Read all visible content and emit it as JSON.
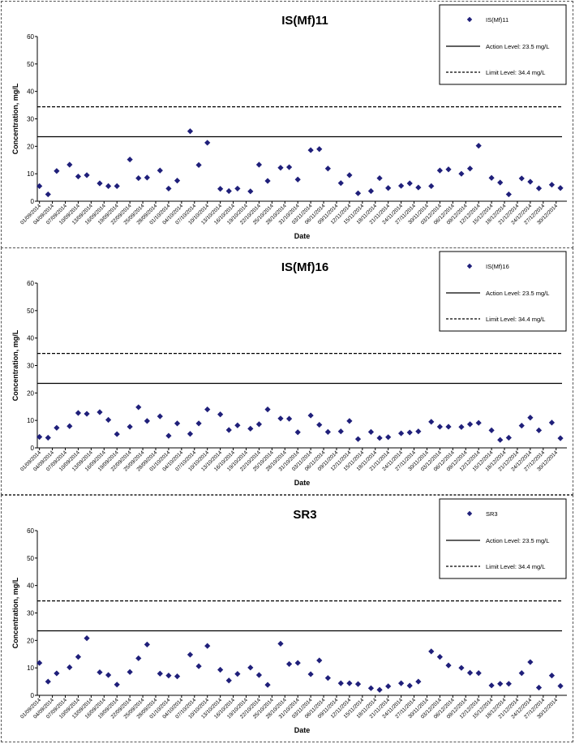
{
  "chart_data": [
    {
      "type": "scatter",
      "title": "IS(Mf)11",
      "xlabel": "Date",
      "ylabel": "Concentration, mg/L",
      "ylim": [
        0,
        60
      ],
      "yticks": [
        0,
        10,
        20,
        30,
        40,
        50,
        60
      ],
      "grid": false,
      "legend": "top-right",
      "xtick_labels": [
        "01/09/2014",
        "04/09/2014",
        "07/09/2014",
        "10/09/2014",
        "13/09/2014",
        "16/09/2014",
        "19/09/2014",
        "22/09/2014",
        "25/09/2014",
        "28/09/2014",
        "01/10/2014",
        "04/10/2014",
        "07/10/2014",
        "10/10/2014",
        "13/10/2014",
        "16/10/2014",
        "19/10/2014",
        "22/10/2014",
        "25/10/2014",
        "28/10/2014",
        "31/10/2014",
        "03/11/2014",
        "06/11/2014",
        "09/11/2014",
        "12/11/2014",
        "15/11/2014",
        "18/11/2014",
        "21/11/2014",
        "24/11/2014",
        "27/11/2014",
        "30/11/2014",
        "03/12/2014",
        "06/12/2014",
        "09/12/2014",
        "12/12/2014",
        "15/12/2014",
        "18/12/2014",
        "21/12/2014",
        "24/12/2014",
        "27/12/2014",
        "30/12/2014"
      ],
      "series": [
        {
          "name": "IS(Mf)11",
          "color": "#1f1f7a",
          "x": [
            "01/09/2014",
            "03/09/2014",
            "05/09/2014",
            "08/09/2014",
            "10/09/2014",
            "12/09/2014",
            "15/09/2014",
            "17/09/2014",
            "19/09/2014",
            "22/09/2014",
            "24/09/2014",
            "26/09/2014",
            "29/09/2014",
            "01/10/2014",
            "03/10/2014",
            "06/10/2014",
            "08/10/2014",
            "10/10/2014",
            "13/10/2014",
            "15/10/2014",
            "17/10/2014",
            "20/10/2014",
            "22/10/2014",
            "24/10/2014",
            "27/10/2014",
            "29/10/2014",
            "31/10/2014",
            "03/11/2014",
            "05/11/2014",
            "07/11/2014",
            "10/11/2014",
            "12/11/2014",
            "14/11/2014",
            "17/11/2014",
            "19/11/2014",
            "21/11/2014",
            "24/11/2014",
            "26/11/2014",
            "28/11/2014",
            "01/12/2014",
            "03/12/2014",
            "05/12/2014",
            "08/12/2014",
            "10/12/2014",
            "12/12/2014",
            "15/12/2014",
            "17/12/2014",
            "19/12/2014",
            "22/12/2014",
            "24/12/2014",
            "26/12/2014",
            "29/12/2014",
            "31/12/2014"
          ],
          "values": [
            5.5,
            2.5,
            11,
            13.3,
            9,
            9.5,
            6.5,
            5.5,
            5.5,
            15.2,
            8.4,
            8.6,
            11.2,
            4.6,
            7.5,
            25.5,
            13.2,
            21.3,
            4.5,
            3.7,
            4.6,
            3.6,
            13.3,
            7.4,
            12.2,
            12.4,
            7.9,
            18.6,
            19,
            11.9,
            6.6,
            9.5,
            2.9,
            3.7,
            8.4,
            4.8,
            5.6,
            6.5,
            5,
            5.5,
            11.2,
            11.6,
            10,
            11.9,
            20.2,
            8.5,
            6.8,
            2.5,
            8.3,
            7.1,
            4.7,
            6,
            4.8
          ]
        },
        {
          "name": "Action Level: 23.5 mg/L",
          "style": "solid",
          "value": 23.5
        },
        {
          "name": "Limit Level: 34.4 mg/L",
          "style": "dashed",
          "value": 34.4
        }
      ]
    },
    {
      "type": "scatter",
      "title": "IS(Mf)16",
      "xlabel": "Date",
      "ylabel": "Concentration, mg/L",
      "ylim": [
        0,
        60
      ],
      "yticks": [
        0,
        10,
        20,
        30,
        40,
        50,
        60
      ],
      "grid": false,
      "legend": "top-right",
      "xtick_labels": [
        "01/09/2014",
        "04/09/2014",
        "07/09/2014",
        "10/09/2014",
        "13/09/2014",
        "16/09/2014",
        "19/09/2014",
        "22/09/2014",
        "25/09/2014",
        "28/09/2014",
        "01/10/2014",
        "04/10/2014",
        "07/10/2014",
        "10/10/2014",
        "13/10/2014",
        "16/10/2014",
        "19/10/2014",
        "22/10/2014",
        "25/10/2014",
        "28/10/2014",
        "31/10/2014",
        "03/11/2014",
        "06/11/2014",
        "09/11/2014",
        "12/11/2014",
        "15/11/2014",
        "18/11/2014",
        "21/11/2014",
        "24/11/2014",
        "27/11/2014",
        "30/11/2014",
        "03/12/2014",
        "06/12/2014",
        "09/12/2014",
        "12/12/2014",
        "15/12/2014",
        "18/12/2014",
        "21/12/2014",
        "24/12/2014",
        "27/12/2014",
        "30/12/2014"
      ],
      "series": [
        {
          "name": "IS(Mf)16",
          "color": "#1f1f7a",
          "x": [
            "01/09/2014",
            "03/09/2014",
            "05/09/2014",
            "08/09/2014",
            "10/09/2014",
            "12/09/2014",
            "15/09/2014",
            "17/09/2014",
            "19/09/2014",
            "22/09/2014",
            "24/09/2014",
            "26/09/2014",
            "29/09/2014",
            "01/10/2014",
            "03/10/2014",
            "06/10/2014",
            "08/10/2014",
            "10/10/2014",
            "13/10/2014",
            "15/10/2014",
            "17/10/2014",
            "20/10/2014",
            "22/10/2014",
            "24/10/2014",
            "27/10/2014",
            "29/10/2014",
            "31/10/2014",
            "03/11/2014",
            "05/11/2014",
            "07/11/2014",
            "10/11/2014",
            "12/11/2014",
            "14/11/2014",
            "17/11/2014",
            "19/11/2014",
            "21/11/2014",
            "24/11/2014",
            "26/11/2014",
            "28/11/2014",
            "01/12/2014",
            "03/12/2014",
            "05/12/2014",
            "08/12/2014",
            "10/12/2014",
            "12/12/2014",
            "15/12/2014",
            "17/12/2014",
            "19/12/2014",
            "22/12/2014",
            "24/12/2014",
            "26/12/2014",
            "29/12/2014",
            "31/12/2014"
          ],
          "values": [
            4,
            3.7,
            7.3,
            7.9,
            12.7,
            12.4,
            13,
            10.2,
            5,
            7.7,
            14.8,
            9.8,
            11.5,
            4.4,
            8.9,
            5.1,
            8.9,
            14,
            12.2,
            6.5,
            8.2,
            7,
            8.6,
            14,
            10.7,
            10.6,
            5.7,
            11.8,
            8.4,
            5.8,
            6,
            9.8,
            3.2,
            5.8,
            3.6,
            3.9,
            5.3,
            5.6,
            6,
            9.5,
            7.7,
            7.7,
            7.6,
            8.6,
            9.1,
            6.4,
            2.9,
            3.7,
            8.1,
            11,
            6.4,
            9.2,
            3.5
          ]
        },
        {
          "name": "Action Level: 23.5 mg/L",
          "style": "solid",
          "value": 23.5
        },
        {
          "name": "Limit Level: 34.4 mg/L",
          "style": "dashed",
          "value": 34.4
        }
      ]
    },
    {
      "type": "scatter",
      "title": "SR3",
      "xlabel": "Date",
      "ylabel": "Concentration, mg/L",
      "ylim": [
        0,
        60
      ],
      "yticks": [
        0,
        10,
        20,
        30,
        40,
        50,
        60
      ],
      "grid": false,
      "legend": "top-right",
      "xtick_labels": [
        "01/09/2014",
        "04/09/2014",
        "07/09/2014",
        "10/09/2014",
        "13/09/2014",
        "16/09/2014",
        "19/09/2014",
        "22/09/2014",
        "25/09/2014",
        "28/09/2014",
        "01/10/2014",
        "04/10/2014",
        "07/10/2014",
        "10/10/2014",
        "13/10/2014",
        "16/10/2014",
        "19/10/2014",
        "22/10/2014",
        "25/10/2014",
        "28/10/2014",
        "31/10/2014",
        "03/11/2014",
        "06/11/2014",
        "09/11/2014",
        "12/11/2014",
        "15/11/2014",
        "18/11/2014",
        "21/11/2014",
        "24/11/2014",
        "27/11/2014",
        "30/11/2014",
        "03/12/2014",
        "06/12/2014",
        "09/12/2014",
        "12/12/2014",
        "15/12/2014",
        "18/12/2014",
        "21/12/2014",
        "24/12/2014",
        "27/12/2014",
        "30/12/2014"
      ],
      "series": [
        {
          "name": "SR3",
          "color": "#1f1f7a",
          "x": [
            "01/09/2014",
            "03/09/2014",
            "05/09/2014",
            "08/09/2014",
            "10/09/2014",
            "12/09/2014",
            "15/09/2014",
            "17/09/2014",
            "19/09/2014",
            "22/09/2014",
            "24/09/2014",
            "26/09/2014",
            "29/09/2014",
            "01/10/2014",
            "03/10/2014",
            "06/10/2014",
            "08/10/2014",
            "10/10/2014",
            "13/10/2014",
            "15/10/2014",
            "17/10/2014",
            "20/10/2014",
            "22/10/2014",
            "24/10/2014",
            "27/10/2014",
            "29/10/2014",
            "31/10/2014",
            "03/11/2014",
            "05/11/2014",
            "07/11/2014",
            "10/11/2014",
            "12/11/2014",
            "14/11/2014",
            "17/11/2014",
            "19/11/2014",
            "21/11/2014",
            "24/11/2014",
            "26/11/2014",
            "28/11/2014",
            "01/12/2014",
            "03/12/2014",
            "05/12/2014",
            "08/12/2014",
            "10/12/2014",
            "12/12/2014",
            "15/12/2014",
            "17/12/2014",
            "19/12/2014",
            "22/12/2014",
            "24/12/2014",
            "26/12/2014",
            "29/12/2014",
            "31/12/2014"
          ],
          "values": [
            11.8,
            5,
            8,
            10.2,
            14,
            20.8,
            8.4,
            7.4,
            3.9,
            8.5,
            13.5,
            18.5,
            7.9,
            7.2,
            6.9,
            14.8,
            10.6,
            18,
            9.3,
            5.4,
            7.8,
            10.1,
            7.4,
            3.8,
            18.8,
            11.4,
            11.8,
            7.7,
            12.7,
            6.3,
            4.4,
            4.4,
            4.1,
            2.6,
            2,
            3.3,
            4.4,
            3.5,
            5,
            16,
            14,
            10.9,
            10,
            8.2,
            8.1,
            3.6,
            4.2,
            4.2,
            8.1,
            12.1,
            2.8,
            7.2,
            3.4
          ]
        },
        {
          "name": "Action Level: 23.5 mg/L",
          "style": "solid",
          "value": 23.5
        },
        {
          "name": "Limit Level: 34.4 mg/L",
          "style": "dashed",
          "value": 34.4
        }
      ]
    }
  ]
}
